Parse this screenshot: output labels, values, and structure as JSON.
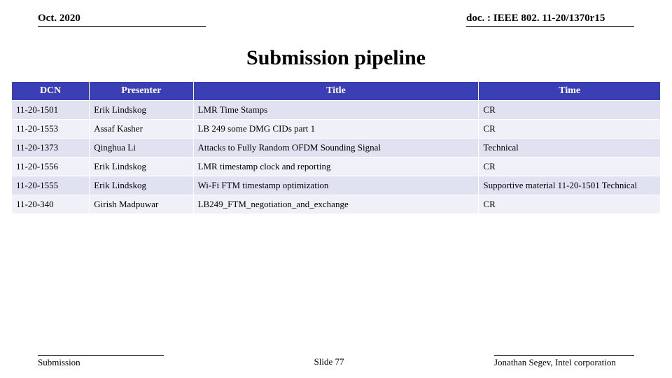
{
  "header": {
    "date": "Oct. 2020",
    "doc_id": "doc. : IEEE 802. 11-20/1370r15"
  },
  "title": "Submission pipeline",
  "table": {
    "columns": [
      "DCN",
      "Presenter",
      "Title",
      "Time"
    ],
    "column_widths_pct": [
      12,
      16,
      44,
      28
    ],
    "header_bg": "#3a3fb5",
    "header_fg": "#ffffff",
    "row_bg_odd": "#e1e2f1",
    "row_bg_even": "#f0f0f8",
    "rows": [
      {
        "dcn": "11-20-1501",
        "presenter": "Erik Lindskog",
        "title": "LMR Time Stamps",
        "time": "CR"
      },
      {
        "dcn": "11-20-1553",
        "presenter": "Assaf Kasher",
        "title": "LB 249 some DMG CIDs part 1",
        "time": "CR"
      },
      {
        "dcn": "11-20-1373",
        "presenter": "Qinghua Li",
        "title": "Attacks to Fully Random OFDM Sounding Signal",
        "time": "Technical"
      },
      {
        "dcn": "11-20-1556",
        "presenter": "Erik Lindskog",
        "title": "LMR timestamp clock and reporting",
        "time": "CR"
      },
      {
        "dcn": "11-20-1555",
        "presenter": "Erik Lindskog",
        "title": "Wi-Fi FTM timestamp optimization",
        "time": "Supportive material 11-20-1501 Technical"
      },
      {
        "dcn": "11-20-340",
        "presenter": "Girish Madpuwar",
        "title": "LB249_FTM_negotiation_and_exchange",
        "time": "CR"
      }
    ]
  },
  "footer": {
    "left": "Submission",
    "center": "Slide 77",
    "right": "Jonathan Segev, Intel corporation"
  }
}
